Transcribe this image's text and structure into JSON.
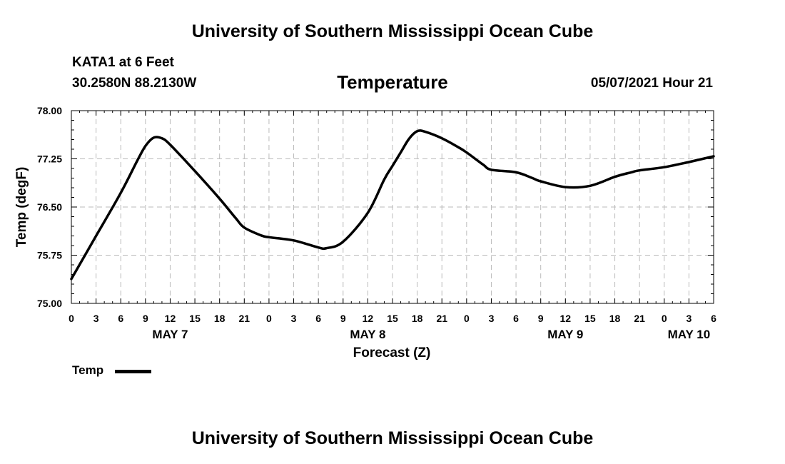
{
  "header": {
    "top_title": "University of Southern Mississippi Ocean Cube",
    "bottom_title": "University of Southern Mississippi Ocean Cube",
    "station": "KATA1 at 6 Feet",
    "coords": "30.2580N  88.2130W",
    "datetime": "05/07/2021 Hour 21"
  },
  "legend": {
    "label": "Temp",
    "color": "#000000"
  },
  "chart_data": {
    "type": "line",
    "title": "Temperature",
    "xlabel": "Forecast (Z)",
    "ylabel": "Temp (degF)",
    "ylim": [
      75.0,
      78.0
    ],
    "yticks": [
      "75.00",
      "75.75",
      "76.50",
      "77.25",
      "78.00"
    ],
    "xlim": [
      0,
      78
    ],
    "xtick_labels": [
      "0",
      "3",
      "6",
      "9",
      "12",
      "15",
      "18",
      "21",
      "0",
      "3",
      "6",
      "9",
      "12",
      "15",
      "18",
      "21",
      "0",
      "3",
      "6",
      "9",
      "12",
      "15",
      "18",
      "21",
      "0",
      "3",
      "6"
    ],
    "date_labels": [
      {
        "label": "MAY 7",
        "hour": 12
      },
      {
        "label": "MAY 8",
        "hour": 36
      },
      {
        "label": "MAY 9",
        "hour": 60
      },
      {
        "label": "MAY 10",
        "hour": 75
      }
    ],
    "grid": true,
    "series": [
      {
        "name": "Temp",
        "color": "#000000",
        "x": [
          0,
          3,
          6,
          8,
          9,
          10,
          11,
          12,
          15,
          18,
          20,
          21,
          23,
          24,
          27,
          30,
          31,
          33,
          36,
          38,
          39,
          40,
          41,
          42,
          43,
          45,
          47,
          48,
          50,
          51,
          54,
          56,
          57,
          60,
          63,
          66,
          68,
          69,
          72,
          75,
          78
        ],
        "values": [
          75.38,
          76.05,
          76.72,
          77.22,
          77.45,
          77.58,
          77.57,
          77.47,
          77.06,
          76.63,
          76.32,
          76.18,
          76.06,
          76.03,
          75.98,
          75.87,
          75.86,
          75.96,
          76.41,
          76.93,
          77.14,
          77.35,
          77.56,
          77.68,
          77.67,
          77.57,
          77.43,
          77.35,
          77.16,
          77.08,
          77.04,
          76.95,
          76.9,
          76.81,
          76.83,
          76.97,
          77.04,
          77.07,
          77.12,
          77.2,
          77.29
        ]
      }
    ]
  }
}
